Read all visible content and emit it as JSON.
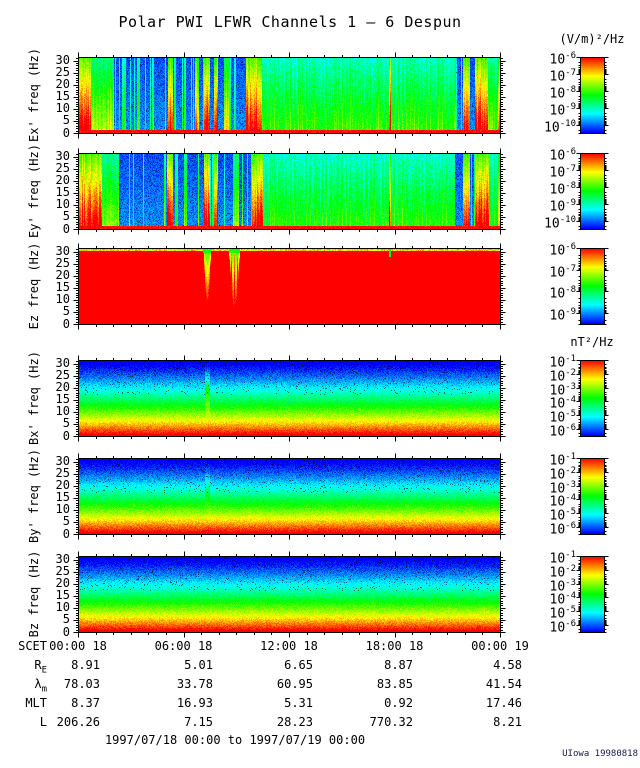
{
  "title": "Polar PWI LFWR Channels 1 — 6 Despun",
  "footer_range": "1997/07/18 00:00 to 1997/07/19 00:00",
  "credit": "UIowa 19980818",
  "chart_data": {
    "type": "heatmap",
    "subtype": "time-frequency spectrogram, 6 stacked panels",
    "title": "Polar PWI LFWR Channels 1 — 6 Despun",
    "x_axis": {
      "label_prefix": "SCET",
      "tick_labels": [
        "00:00 18",
        "06:00 18",
        "12:00 18",
        "18:00 18",
        "00:00 19"
      ],
      "range_hours": [
        0,
        24
      ],
      "minor_tick_hours": 1,
      "major_tick_hours": 6
    },
    "y_axis": {
      "tick_labels": [
        "0",
        "5",
        "10",
        "15",
        "20",
        "25",
        "30"
      ],
      "range_hz": [
        0,
        31.5
      ],
      "minor_tick_hz": 1,
      "major_tick_hz": 5
    },
    "electric_units_header": "(V/m)²/Hz",
    "magnetic_units_header": "nT²/Hz",
    "panels": [
      {
        "key": "ex",
        "ylabel": "Ex' freq (Hz)",
        "style": "E",
        "seed": 11,
        "units_header": "(V/m)²/Hz",
        "colorbar": {
          "exponents": [
            "-6",
            "-7",
            "-8",
            "-9",
            "-10"
          ],
          "span": 4.5
        },
        "bursts": [
          [
            0,
            0.7,
            1.0
          ],
          [
            0.7,
            2.0,
            0.68
          ],
          [
            2.5,
            2.7,
            0.5
          ],
          [
            3.3,
            3.5,
            0.55
          ],
          [
            5.1,
            5.4,
            1.0
          ],
          [
            6.65,
            6.85,
            0.85
          ],
          [
            7.15,
            7.5,
            1.0
          ],
          [
            7.7,
            7.95,
            1.0
          ],
          [
            8.3,
            8.55,
            0.75
          ],
          [
            9.5,
            10.45,
            1.0
          ],
          [
            17.68,
            17.78,
            1.0
          ],
          [
            21.85,
            22.25,
            0.95
          ],
          [
            22.55,
            23.3,
            1.0
          ],
          [
            23.85,
            24,
            0.9
          ]
        ],
        "washes": [
          [
            10.45,
            21.4,
            0.5
          ],
          [
            23.3,
            23.85,
            0.55
          ]
        ]
      },
      {
        "key": "ey",
        "ylabel": "Ey' freq (Hz)",
        "style": "E",
        "seed": 29,
        "colorbar": {
          "exponents": [
            "-6",
            "-7",
            "-8",
            "-9",
            "-10"
          ],
          "span": 4.5
        },
        "bursts": [
          [
            0,
            1.35,
            1.0
          ],
          [
            1.35,
            2.3,
            0.6
          ],
          [
            5.05,
            5.35,
            1.0
          ],
          [
            6.0,
            6.15,
            0.6
          ],
          [
            7.15,
            7.5,
            1.0
          ],
          [
            7.7,
            7.95,
            1.0
          ],
          [
            8.85,
            9.1,
            0.65
          ],
          [
            9.85,
            10.5,
            1.0
          ],
          [
            17.68,
            17.78,
            0.95
          ],
          [
            21.85,
            22.25,
            0.9
          ],
          [
            22.55,
            23.35,
            1.0
          ],
          [
            23.85,
            24,
            0.85
          ]
        ],
        "washes": [
          [
            10.5,
            21.4,
            0.48
          ],
          [
            23.35,
            23.85,
            0.5
          ]
        ]
      },
      {
        "key": "ez",
        "ylabel": "Ez freq (Hz)",
        "style": "EZ",
        "seed": 47,
        "colorbar": {
          "exponents": [
            "-6",
            "-7",
            "-8",
            "-9"
          ],
          "span": 3.5
        },
        "plumes": [
          {
            "t0": 7.1,
            "t1": 7.55,
            "min_f": 9,
            "stripes": false
          },
          {
            "t0": 8.55,
            "t1": 9.2,
            "min_f": 7,
            "stripes": true
          }
        ],
        "green_line_t": 17.7
      },
      {
        "key": "bx",
        "ylabel": "Bx' freq (Hz)",
        "style": "B",
        "seed": 63,
        "units_header": "nT²/Hz",
        "colorbar": {
          "exponents": [
            "-1",
            "-2",
            "-3",
            "-4",
            "-5",
            "-6"
          ],
          "span": 5.5
        },
        "plume": {
          "t0": 7.2,
          "t1": 7.5,
          "amp": 0.22,
          "f0": 19
        }
      },
      {
        "key": "by",
        "ylabel": "By' freq (Hz)",
        "style": "B",
        "seed": 77,
        "colorbar": {
          "exponents": [
            "-1",
            "-2",
            "-3",
            "-4",
            "-5",
            "-6"
          ],
          "span": 5.5
        },
        "plume": {
          "t0": 7.2,
          "t1": 7.5,
          "amp": 0.1,
          "f0": 19
        }
      },
      {
        "key": "bz",
        "ylabel": "Bz freq (Hz)",
        "style": "B",
        "seed": 91,
        "colorbar": {
          "exponents": [
            "-1",
            "-2",
            "-3",
            "-4",
            "-5",
            "-6"
          ],
          "span": 5.5
        }
      }
    ],
    "annotation_rows": [
      {
        "label": {
          "main": "SCET",
          "sub": ""
        },
        "values": [
          "00:00 18",
          "06:00 18",
          "12:00 18",
          "18:00 18",
          "00:00 19"
        ],
        "align": "center"
      },
      {
        "label": {
          "main": "R",
          "sub": "E"
        },
        "values": [
          "8.91",
          "5.01",
          "6.65",
          "8.87",
          "4.58"
        ],
        "align": "right"
      },
      {
        "label": {
          "main": "λ",
          "sub": "m"
        },
        "values": [
          "78.03",
          "33.78",
          "60.95",
          "83.85",
          "41.54"
        ],
        "align": "right"
      },
      {
        "label": {
          "main": "MLT",
          "sub": ""
        },
        "values": [
          "8.37",
          "16.93",
          "5.31",
          "0.92",
          "17.46"
        ],
        "align": "right"
      },
      {
        "label": {
          "main": "L",
          "sub": ""
        },
        "values": [
          "206.26",
          "7.15",
          "28.23",
          "770.32",
          "8.21"
        ],
        "align": "right"
      }
    ],
    "footer_range": "1997/07/18 00:00 to 1997/07/19 00:00",
    "credit": "UIowa 19980818"
  }
}
